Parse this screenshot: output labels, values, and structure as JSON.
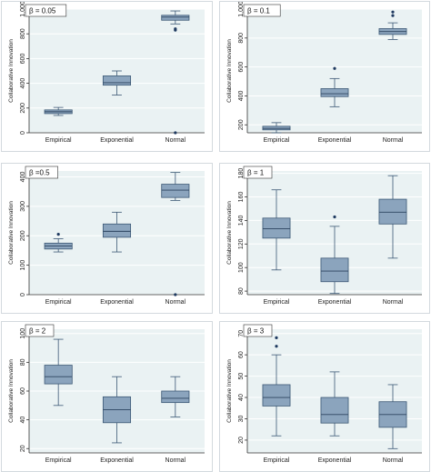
{
  "chart_data": [
    {
      "type": "box",
      "legend": "β = 0.05",
      "ylabel": "Collaborative Innovation",
      "ylim": [
        0,
        1000
      ],
      "yticks": [
        0,
        200,
        400,
        600,
        800,
        1000
      ],
      "categories": [
        "Empirical",
        "Exponential",
        "Normal"
      ],
      "boxes": [
        {
          "min": 140,
          "q1": 155,
          "median": 170,
          "q3": 185,
          "max": 205,
          "outliers": []
        },
        {
          "min": 305,
          "q1": 385,
          "median": 405,
          "q3": 460,
          "max": 500,
          "outliers": []
        },
        {
          "min": 880,
          "q1": 910,
          "median": 935,
          "q3": 950,
          "max": 985,
          "outliers": [
            830,
            840,
            0
          ]
        }
      ]
    },
    {
      "type": "box",
      "legend": "β = 0.1",
      "ylabel": "Collaborative Innovation",
      "ylim": [
        145,
        1000
      ],
      "yticks": [
        200,
        400,
        600,
        800,
        1000
      ],
      "categories": [
        "Empirical",
        "Exponential",
        "Normal"
      ],
      "boxes": [
        {
          "min": 145,
          "q1": 165,
          "median": 175,
          "q3": 190,
          "max": 215,
          "outliers": []
        },
        {
          "min": 325,
          "q1": 395,
          "median": 415,
          "q3": 450,
          "max": 520,
          "outliers": [
            590
          ]
        },
        {
          "min": 790,
          "q1": 825,
          "median": 845,
          "q3": 865,
          "max": 905,
          "outliers": [
            955,
            980
          ]
        }
      ]
    },
    {
      "type": "box",
      "legend": "β =0.5",
      "ylabel": "Collaborative Innovation",
      "ylim": [
        0,
        420
      ],
      "yticks": [
        0,
        100,
        200,
        300,
        400
      ],
      "categories": [
        "Empirical",
        "Exponential",
        "Normal"
      ],
      "boxes": [
        {
          "min": 145,
          "q1": 155,
          "median": 165,
          "q3": 175,
          "max": 190,
          "outliers": [
            205
          ]
        },
        {
          "min": 145,
          "q1": 195,
          "median": 215,
          "q3": 240,
          "max": 280,
          "outliers": []
        },
        {
          "min": 320,
          "q1": 330,
          "median": 355,
          "q3": 375,
          "max": 415,
          "outliers": [
            0
          ]
        }
      ]
    },
    {
      "type": "box",
      "legend": "β = 1",
      "ylabel": "Collaborative Innovation",
      "ylim": [
        77,
        182
      ],
      "yticks": [
        80,
        100,
        120,
        140,
        160,
        180
      ],
      "categories": [
        "Empirical",
        "Exponential",
        "Normal"
      ],
      "boxes": [
        {
          "min": 98,
          "q1": 125,
          "median": 133,
          "q3": 142,
          "max": 166,
          "outliers": []
        },
        {
          "min": 78,
          "q1": 88,
          "median": 97,
          "q3": 108,
          "max": 135,
          "outliers": [
            143
          ]
        },
        {
          "min": 108,
          "q1": 137,
          "median": 147,
          "q3": 158,
          "max": 178,
          "outliers": []
        }
      ]
    },
    {
      "type": "box",
      "legend": "β = 2",
      "ylabel": "Collaborative Innovation",
      "ylim": [
        17,
        103
      ],
      "yticks": [
        20,
        40,
        60,
        80,
        100
      ],
      "categories": [
        "Empirical",
        "Exponential",
        "Normal"
      ],
      "boxes": [
        {
          "min": 50,
          "q1": 65,
          "median": 70,
          "q3": 78,
          "max": 96,
          "outliers": []
        },
        {
          "min": 24,
          "q1": 38,
          "median": 47,
          "q3": 56,
          "max": 70,
          "outliers": []
        },
        {
          "min": 42,
          "q1": 52,
          "median": 55,
          "q3": 60,
          "max": 70,
          "outliers": []
        }
      ]
    },
    {
      "type": "box",
      "legend": "β = 3",
      "ylabel": "Collaborative Innovation",
      "ylim": [
        14,
        72
      ],
      "yticks": [
        20,
        30,
        40,
        50,
        60,
        70
      ],
      "categories": [
        "Empirical",
        "Exponential",
        "Normal"
      ],
      "boxes": [
        {
          "min": 22,
          "q1": 36,
          "median": 40,
          "q3": 46,
          "max": 60,
          "outliers": [
            64,
            68
          ]
        },
        {
          "min": 22,
          "q1": 28,
          "median": 32,
          "q3": 40,
          "max": 52,
          "outliers": []
        },
        {
          "min": 16,
          "q1": 26,
          "median": 32,
          "q3": 38,
          "max": 46,
          "outliers": []
        }
      ]
    }
  ]
}
